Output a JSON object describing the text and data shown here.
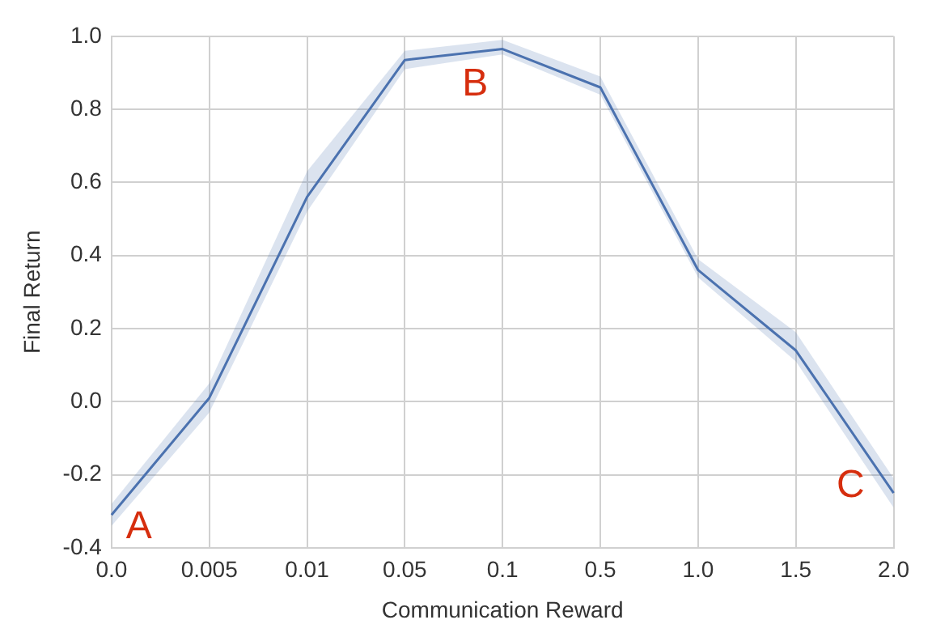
{
  "chart_data": {
    "type": "line",
    "xlabel": "Communication Reward",
    "ylabel": "Final Return",
    "categories": [
      "0.0",
      "0.005",
      "0.01",
      "0.05",
      "0.1",
      "0.5",
      "1.0",
      "1.5",
      "2.0"
    ],
    "series": [
      {
        "color": "#4c72b0",
        "values": [
          -0.31,
          0.01,
          0.56,
          0.935,
          0.965,
          0.86,
          0.36,
          0.14,
          -0.25
        ],
        "lower": [
          -0.34,
          -0.03,
          0.52,
          0.91,
          0.95,
          0.84,
          0.34,
          0.11,
          -0.29
        ],
        "upper": [
          -0.28,
          0.05,
          0.63,
          0.96,
          0.99,
          0.89,
          0.39,
          0.19,
          -0.21
        ]
      }
    ],
    "ylim": [
      -0.4,
      1.0
    ],
    "yticks": [
      -0.4,
      -0.2,
      {
        "value": 0,
        "label": "0.0"
      },
      0.2,
      0.4,
      0.6,
      0.8,
      {
        "value": 1,
        "label": "1.0"
      }
    ],
    "grid": true,
    "legend": false,
    "marker": "none",
    "line_style": "solid",
    "annotations": [
      "A",
      "B",
      "C"
    ]
  }
}
